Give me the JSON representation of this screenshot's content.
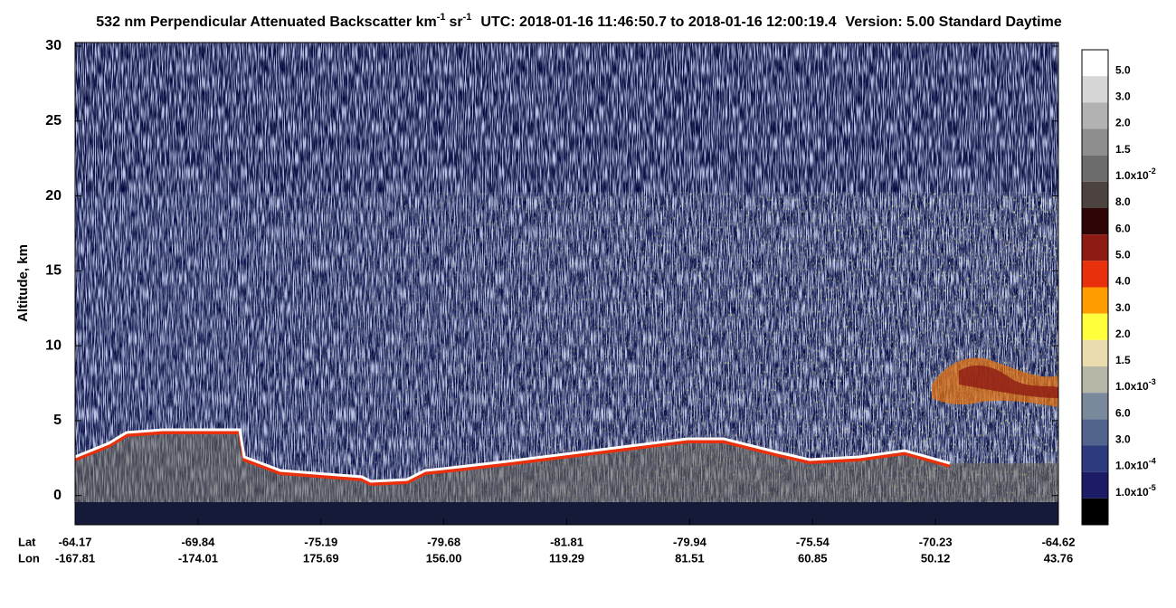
{
  "chart_data": {
    "type": "heatmap",
    "title_parts": [
      "532 nm Perpendicular Attenuated Backscatter km",
      "-1",
      "sr",
      "-1",
      "UTC: 2018-01-16 11:46:50.7 to 2018-01-16 12:00:19.4",
      "Version: 5.00 Standard Daytime"
    ],
    "ylabel": "Altitude, km",
    "ylim": [
      -1.95,
      30.24
    ],
    "yticks": [
      0,
      5,
      10,
      15,
      20,
      25,
      30
    ],
    "row_titles": [
      "Lat",
      "Lon"
    ],
    "lat_labels": [
      "-64.17",
      "-69.84",
      "-75.19",
      "-79.68",
      "-81.81",
      "-79.94",
      "-75.54",
      "-70.23",
      "-64.62"
    ],
    "lon_labels": [
      "-167.81",
      "-174.01",
      "175.69",
      "156.00",
      "119.29",
      "81.51",
      "60.85",
      "50.12",
      "43.76"
    ],
    "colorbar_colors": [
      "#ffffff",
      "#d6d6d6",
      "#b2b2b2",
      "#8e8e8e",
      "#6c6c6c",
      "#4c4240",
      "#2e0606",
      "#8e1c14",
      "#e8300c",
      "#ff9c00",
      "#ffff3c",
      "#eadcae",
      "#b6b6a6",
      "#7a889c",
      "#52648e",
      "#2e3a7e",
      "#1c1c66",
      "#000000"
    ],
    "colorbar_labels": [
      "5.0",
      "3.0",
      "2.0",
      "1.5",
      {
        "base": "1.0x10",
        "exp": "-2"
      },
      "8.0",
      "6.0",
      "5.0",
      "4.0",
      "3.0",
      "2.0",
      "1.5",
      {
        "base": "1.0x10",
        "exp": "-3"
      },
      "6.0",
      "3.0",
      {
        "base": "1.0x10",
        "exp": "-4"
      },
      {
        "base": "1.0x10",
        "exp": "-5"
      }
    ]
  }
}
